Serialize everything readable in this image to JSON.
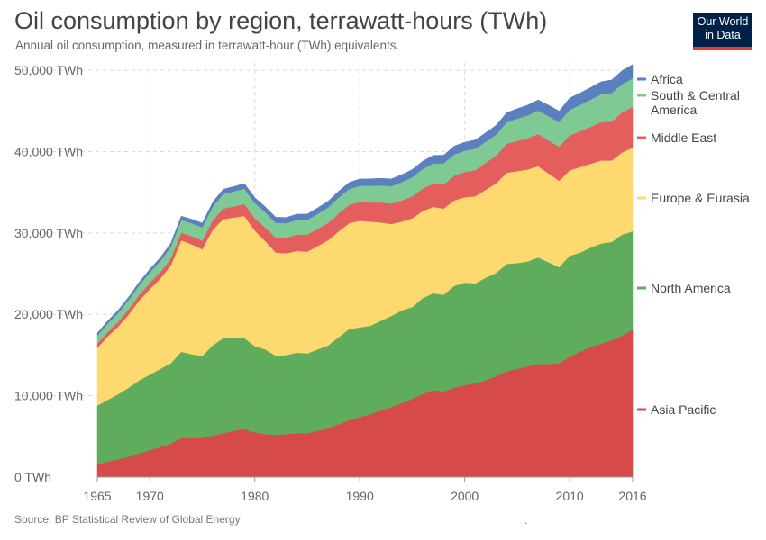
{
  "header": {
    "title": "Oil consumption by region, terrawatt-hours (TWh)",
    "subtitle": "Annual oil consumption, measured in terrawatt-hour (TWh) equivalents."
  },
  "logo": {
    "line1": "Our World",
    "line2": "in Data"
  },
  "footer": {
    "source": "Source: BP Statistical Review of Global Energy",
    "dot": "."
  },
  "chart_data": {
    "type": "area",
    "stacked": true,
    "x": [
      1965,
      1966,
      1967,
      1968,
      1969,
      1970,
      1971,
      1972,
      1973,
      1974,
      1975,
      1976,
      1977,
      1978,
      1979,
      1980,
      1981,
      1982,
      1983,
      1984,
      1985,
      1986,
      1987,
      1988,
      1989,
      1990,
      1991,
      1992,
      1993,
      1994,
      1995,
      1996,
      1997,
      1998,
      1999,
      2000,
      2001,
      2002,
      2003,
      2004,
      2005,
      2006,
      2007,
      2008,
      2009,
      2010,
      2011,
      2012,
      2013,
      2014,
      2015,
      2016
    ],
    "xticks": [
      1965,
      1970,
      1980,
      1990,
      2000,
      2010,
      2016
    ],
    "ylim": [
      0,
      52000
    ],
    "yticks": [
      0,
      10000,
      20000,
      30000,
      40000,
      50000
    ],
    "ytick_labels": [
      "0 TWh",
      "10,000 TWh",
      "20,000 TWh",
      "30,000 TWh",
      "40,000 TWh",
      "50,000 TWh"
    ],
    "grid": true,
    "legend_position": "right",
    "series": [
      {
        "name": "Asia Pacific",
        "color": "#d64a4b",
        "values": [
          1600,
          1900,
          2200,
          2500,
          2900,
          3300,
          3700,
          4100,
          4800,
          4800,
          4800,
          5100,
          5400,
          5700,
          5900,
          5500,
          5300,
          5200,
          5300,
          5400,
          5400,
          5700,
          6000,
          6500,
          7000,
          7400,
          7700,
          8200,
          8600,
          9100,
          9600,
          10200,
          10700,
          10500,
          11000,
          11300,
          11500,
          11900,
          12400,
          13000,
          13300,
          13600,
          13900,
          13900,
          14000,
          14800,
          15400,
          16000,
          16400,
          16800,
          17400,
          18100
        ]
      },
      {
        "name": "North America",
        "color": "#5fad5c",
        "values": [
          7200,
          7600,
          8000,
          8500,
          9000,
          9300,
          9600,
          9900,
          10600,
          10300,
          10100,
          11100,
          11700,
          11400,
          11200,
          10600,
          10400,
          9700,
          9700,
          9900,
          9800,
          10000,
          10200,
          10700,
          11200,
          11000,
          10900,
          11000,
          11200,
          11400,
          11300,
          11800,
          11900,
          11900,
          12500,
          12600,
          12300,
          12600,
          12700,
          13200,
          13000,
          12900,
          13100,
          12500,
          11800,
          12400,
          12200,
          12200,
          12300,
          12100,
          12400,
          12100
        ]
      },
      {
        "name": "Europe & Eurasia",
        "color": "#fdd96f",
        "values": [
          7100,
          7800,
          8300,
          9000,
          9800,
          10500,
          11100,
          12000,
          13700,
          13500,
          13100,
          14200,
          14600,
          14800,
          15000,
          14200,
          13300,
          12700,
          12500,
          12500,
          12500,
          12700,
          12900,
          13000,
          13000,
          13100,
          12800,
          12100,
          11300,
          10900,
          10900,
          10700,
          10600,
          10600,
          10500,
          10500,
          10700,
          10800,
          11000,
          11200,
          11300,
          11300,
          11200,
          10900,
          10600,
          10500,
          10500,
          10300,
          10200,
          10000,
          10100,
          10300
        ]
      },
      {
        "name": "Middle East",
        "color": "#e55e5e",
        "values": [
          500,
          550,
          600,
          650,
          700,
          750,
          800,
          850,
          950,
          1000,
          1050,
          1150,
          1300,
          1350,
          1450,
          1500,
          1650,
          1800,
          1900,
          2000,
          2100,
          2100,
          2150,
          2200,
          2250,
          2300,
          2350,
          2450,
          2500,
          2600,
          2700,
          2750,
          2850,
          2950,
          3050,
          3100,
          3200,
          3300,
          3400,
          3550,
          3700,
          3850,
          3950,
          4050,
          4200,
          4300,
          4400,
          4550,
          4700,
          4800,
          4900,
          5000
        ]
      },
      {
        "name": "South & Central America",
        "color": "#7ec994",
        "values": [
          1000,
          1050,
          1100,
          1150,
          1200,
          1300,
          1350,
          1450,
          1550,
          1600,
          1650,
          1700,
          1800,
          1850,
          1900,
          1900,
          1900,
          1850,
          1800,
          1800,
          1800,
          1850,
          1900,
          1950,
          1950,
          2000,
          2050,
          2100,
          2150,
          2250,
          2350,
          2400,
          2500,
          2600,
          2600,
          2600,
          2650,
          2600,
          2600,
          2650,
          2750,
          2800,
          2900,
          3000,
          3000,
          3150,
          3250,
          3350,
          3450,
          3500,
          3500,
          3500
        ]
      },
      {
        "name": "Africa",
        "color": "#5c7fbf",
        "values": [
          300,
          320,
          340,
          360,
          380,
          400,
          420,
          440,
          470,
          490,
          520,
          550,
          580,
          600,
          630,
          650,
          670,
          690,
          700,
          710,
          720,
          740,
          760,
          790,
          810,
          830,
          850,
          870,
          890,
          910,
          940,
          970,
          990,
          1010,
          1030,
          1050,
          1080,
          1110,
          1140,
          1180,
          1220,
          1260,
          1300,
          1340,
          1380,
          1430,
          1450,
          1480,
          1540,
          1600,
          1650,
          1700
        ]
      }
    ]
  }
}
